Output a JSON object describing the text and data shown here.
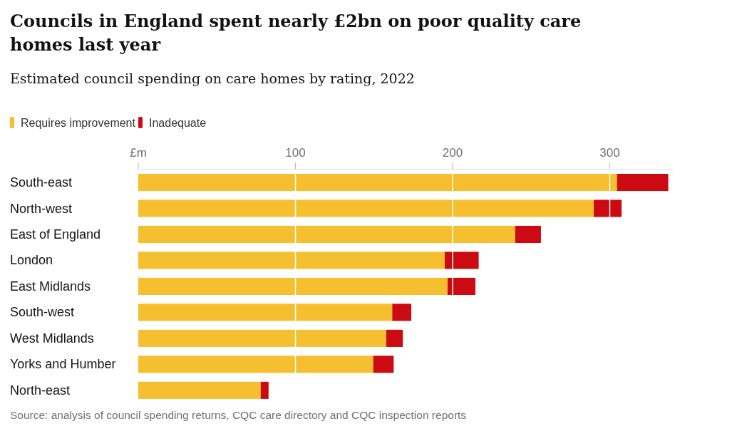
{
  "chart_data": {
    "type": "bar",
    "orientation": "horizontal",
    "stacked": true,
    "title": "Councils in England spent nearly £2bn on poor quality care homes last year",
    "subtitle": "Estimated council spending on care homes by rating, 2022",
    "categories": [
      "South-east",
      "North-west",
      "East of England",
      "London",
      "East Midlands",
      "South-west",
      "West Midlands",
      "Yorks and Humber",
      "North-east"
    ],
    "series": [
      {
        "name": "Requires improvement",
        "color": "#f5bf2f",
        "values": [
          304.6,
          289.8,
          239.8,
          195,
          196.8,
          161.6,
          157.8,
          149.5,
          77.9
        ]
      },
      {
        "name": "Inadequate",
        "color": "#cc0a11",
        "values": [
          32.6,
          17.7,
          16.4,
          21.6,
          17.7,
          12.1,
          10.5,
          13,
          5
        ]
      }
    ],
    "xlim": [
      0,
      340
    ],
    "xticks": [
      {
        "value": 0,
        "label": "£m"
      },
      100,
      200,
      300
    ],
    "grid": "x",
    "legend": "top left",
    "annotations": [
      "Source: analysis of council spending returns, CQC care directory and CQC inspection reports"
    ]
  }
}
